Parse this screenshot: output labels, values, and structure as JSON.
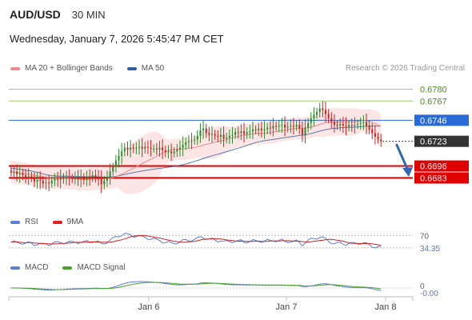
{
  "header": {
    "symbol": "AUD/USD",
    "timeframe": "30 MIN",
    "datetime": "Wednesday, January 7, 2026 5:45:47 PM CET"
  },
  "legend_main": [
    {
      "label": "MA 20 + Bollinger Bands",
      "color": "#f08a8a"
    },
    {
      "label": "MA 50",
      "color": "#2f5f9e"
    }
  ],
  "credit": "Research © 2026 Trading Central",
  "legend_rsi": [
    {
      "label": "RSI",
      "color": "#5b7fd6"
    },
    {
      "label": "9MA",
      "color": "#e02020"
    }
  ],
  "legend_macd": [
    {
      "label": "MACD",
      "color": "#5b7fd6"
    },
    {
      "label": "MACD Signal",
      "color": "#4aa02a"
    }
  ],
  "colors": {
    "up_candle": "#2a8a2a",
    "down_candle": "#cc2222",
    "resistance": "#9ccf6a",
    "pivot": "#2a6ad6",
    "support": "#e00000",
    "last_price": "#333333",
    "arrow": "#2f67b8",
    "band_fill": "#fbdcdc"
  },
  "chart_data": {
    "type": "candlestick",
    "x_ticks": [
      "Jan 6",
      "Jan 7",
      "Jan 8"
    ],
    "ylim": [
      0.6665,
      0.679
    ],
    "levels": [
      {
        "value": 0.678,
        "label": "0.6780",
        "kind": "resistance"
      },
      {
        "value": 0.6767,
        "label": "0.6767",
        "kind": "resistance"
      },
      {
        "value": 0.6746,
        "label": "0.6746",
        "kind": "pivot"
      },
      {
        "value": 0.6723,
        "label": "0.6723",
        "kind": "last"
      },
      {
        "value": 0.6696,
        "label": "0.6696",
        "kind": "support"
      },
      {
        "value": 0.6683,
        "label": "0.6683",
        "kind": "support"
      }
    ],
    "forecast_arrow": {
      "from": 0.6719,
      "to": 0.6686
    },
    "close": [
      0.6689,
      0.669,
      0.6687,
      0.6688,
      0.6686,
      0.6684,
      0.6685,
      0.6683,
      0.6679,
      0.6681,
      0.668,
      0.6677,
      0.6678,
      0.6677,
      0.668,
      0.6682,
      0.6681,
      0.6683,
      0.6682,
      0.6684,
      0.6683,
      0.6682,
      0.6684,
      0.6682,
      0.6683,
      0.6681,
      0.6684,
      0.6683,
      0.6686,
      0.6684,
      0.6682,
      0.6676,
      0.668,
      0.6684,
      0.669,
      0.6695,
      0.6702,
      0.6707,
      0.6712,
      0.6716,
      0.6714,
      0.6716,
      0.6715,
      0.6716,
      0.6717,
      0.6715,
      0.6717,
      0.6716,
      0.6715,
      0.6715,
      0.6714,
      0.6716,
      0.6713,
      0.6711,
      0.6712,
      0.671,
      0.6712,
      0.6714,
      0.6716,
      0.6719,
      0.6722,
      0.6723,
      0.6724,
      0.6725,
      0.6729,
      0.6735,
      0.6737,
      0.6732,
      0.673,
      0.6731,
      0.6729,
      0.6728,
      0.673,
      0.6726,
      0.6727,
      0.6729,
      0.673,
      0.6733,
      0.6732,
      0.6734,
      0.6731,
      0.6733,
      0.6734,
      0.6736,
      0.6735,
      0.6737,
      0.6735,
      0.6736,
      0.6738,
      0.6737,
      0.674,
      0.6739,
      0.674,
      0.6741,
      0.6738,
      0.6739,
      0.674,
      0.6739,
      0.6741,
      0.6737,
      0.673,
      0.6738,
      0.6743,
      0.6748,
      0.6752,
      0.6755,
      0.6759,
      0.6757,
      0.6753,
      0.6748,
      0.6744,
      0.6741,
      0.674,
      0.6742,
      0.674,
      0.6739,
      0.6741,
      0.674,
      0.6741,
      0.6742,
      0.6743,
      0.6744,
      0.674,
      0.6736,
      0.6732,
      0.6728,
      0.6725,
      0.6723
    ],
    "rsi": {
      "levels": [
        70,
        34.35
      ],
      "level_labels": [
        "70",
        "34.35"
      ]
    },
    "macd": {
      "levels": [
        0,
        -0.0
      ],
      "level_labels": [
        "0",
        "-0.00"
      ]
    }
  }
}
